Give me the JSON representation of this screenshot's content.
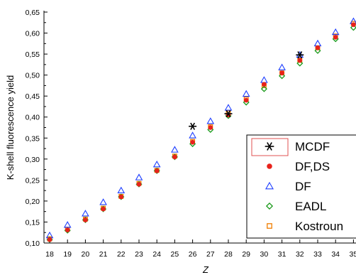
{
  "chart_data": {
    "type": "scatter",
    "title": "",
    "xlabel": "Z",
    "ylabel": "K-shell fluorescence yield",
    "xlim": [
      18,
      35
    ],
    "ylim": [
      0.1,
      0.65
    ],
    "x_ticks": [
      "18",
      "19",
      "20",
      "21",
      "22",
      "23",
      "24",
      "25",
      "26",
      "27",
      "28",
      "29",
      "30",
      "31",
      "32",
      "33",
      "34",
      "35"
    ],
    "y_ticks": [
      "0,10",
      "0,15",
      "0,20",
      "0,25",
      "0,30",
      "0,35",
      "0,40",
      "0,45",
      "0,50",
      "0,55",
      "0,60",
      "0,65"
    ],
    "grid": false,
    "legend_position": "bottom-right",
    "series": [
      {
        "name": "MCDF",
        "marker": "asterisk",
        "color": "#000000",
        "x": [
          26,
          28,
          32
        ],
        "y": [
          0.378,
          0.408,
          0.548
        ]
      },
      {
        "name": "DF,DS",
        "marker": "filled-circle",
        "color": "#e8221b",
        "x": [
          18,
          19,
          20,
          21,
          22,
          23,
          24,
          25,
          26,
          27,
          28,
          29,
          30,
          31,
          32,
          33,
          34,
          35
        ],
        "y": [
          0.108,
          0.131,
          0.155,
          0.181,
          0.21,
          0.24,
          0.272,
          0.305,
          0.34,
          0.375,
          0.405,
          0.44,
          0.478,
          0.505,
          0.535,
          0.565,
          0.59,
          0.62
        ]
      },
      {
        "name": "DF",
        "marker": "open-triangle",
        "color": "#1f3fff",
        "x": [
          18,
          19,
          20,
          21,
          22,
          23,
          24,
          25,
          26,
          27,
          28,
          29,
          30,
          31,
          32,
          33,
          34,
          35
        ],
        "y": [
          0.118,
          0.143,
          0.17,
          0.197,
          0.225,
          0.256,
          0.287,
          0.322,
          0.356,
          0.39,
          0.422,
          0.455,
          0.488,
          0.518,
          0.548,
          0.575,
          0.602,
          0.628
        ]
      },
      {
        "name": "EADL",
        "marker": "open-diamond",
        "color": "#1a9a1a",
        "x": [
          18,
          19,
          20,
          21,
          22,
          23,
          24,
          25,
          26,
          27,
          28,
          29,
          30,
          31,
          32,
          33,
          34,
          35
        ],
        "y": [
          0.108,
          0.13,
          0.155,
          0.181,
          0.21,
          0.24,
          0.272,
          0.305,
          0.336,
          0.37,
          0.403,
          0.435,
          0.467,
          0.498,
          0.528,
          0.558,
          0.586,
          0.613
        ]
      },
      {
        "name": "Kostroun",
        "marker": "open-square",
        "color": "#f07d00",
        "x": [
          18,
          19,
          20,
          21,
          22,
          23,
          24,
          25,
          26,
          27,
          28,
          29,
          30,
          31,
          32,
          33,
          34,
          35
        ],
        "y": [
          0.11,
          0.133,
          0.157,
          0.183,
          0.211,
          0.242,
          0.273,
          0.307,
          0.342,
          0.377,
          0.41,
          0.443,
          0.475,
          0.505,
          0.535,
          0.565,
          0.593,
          0.623
        ]
      }
    ]
  }
}
